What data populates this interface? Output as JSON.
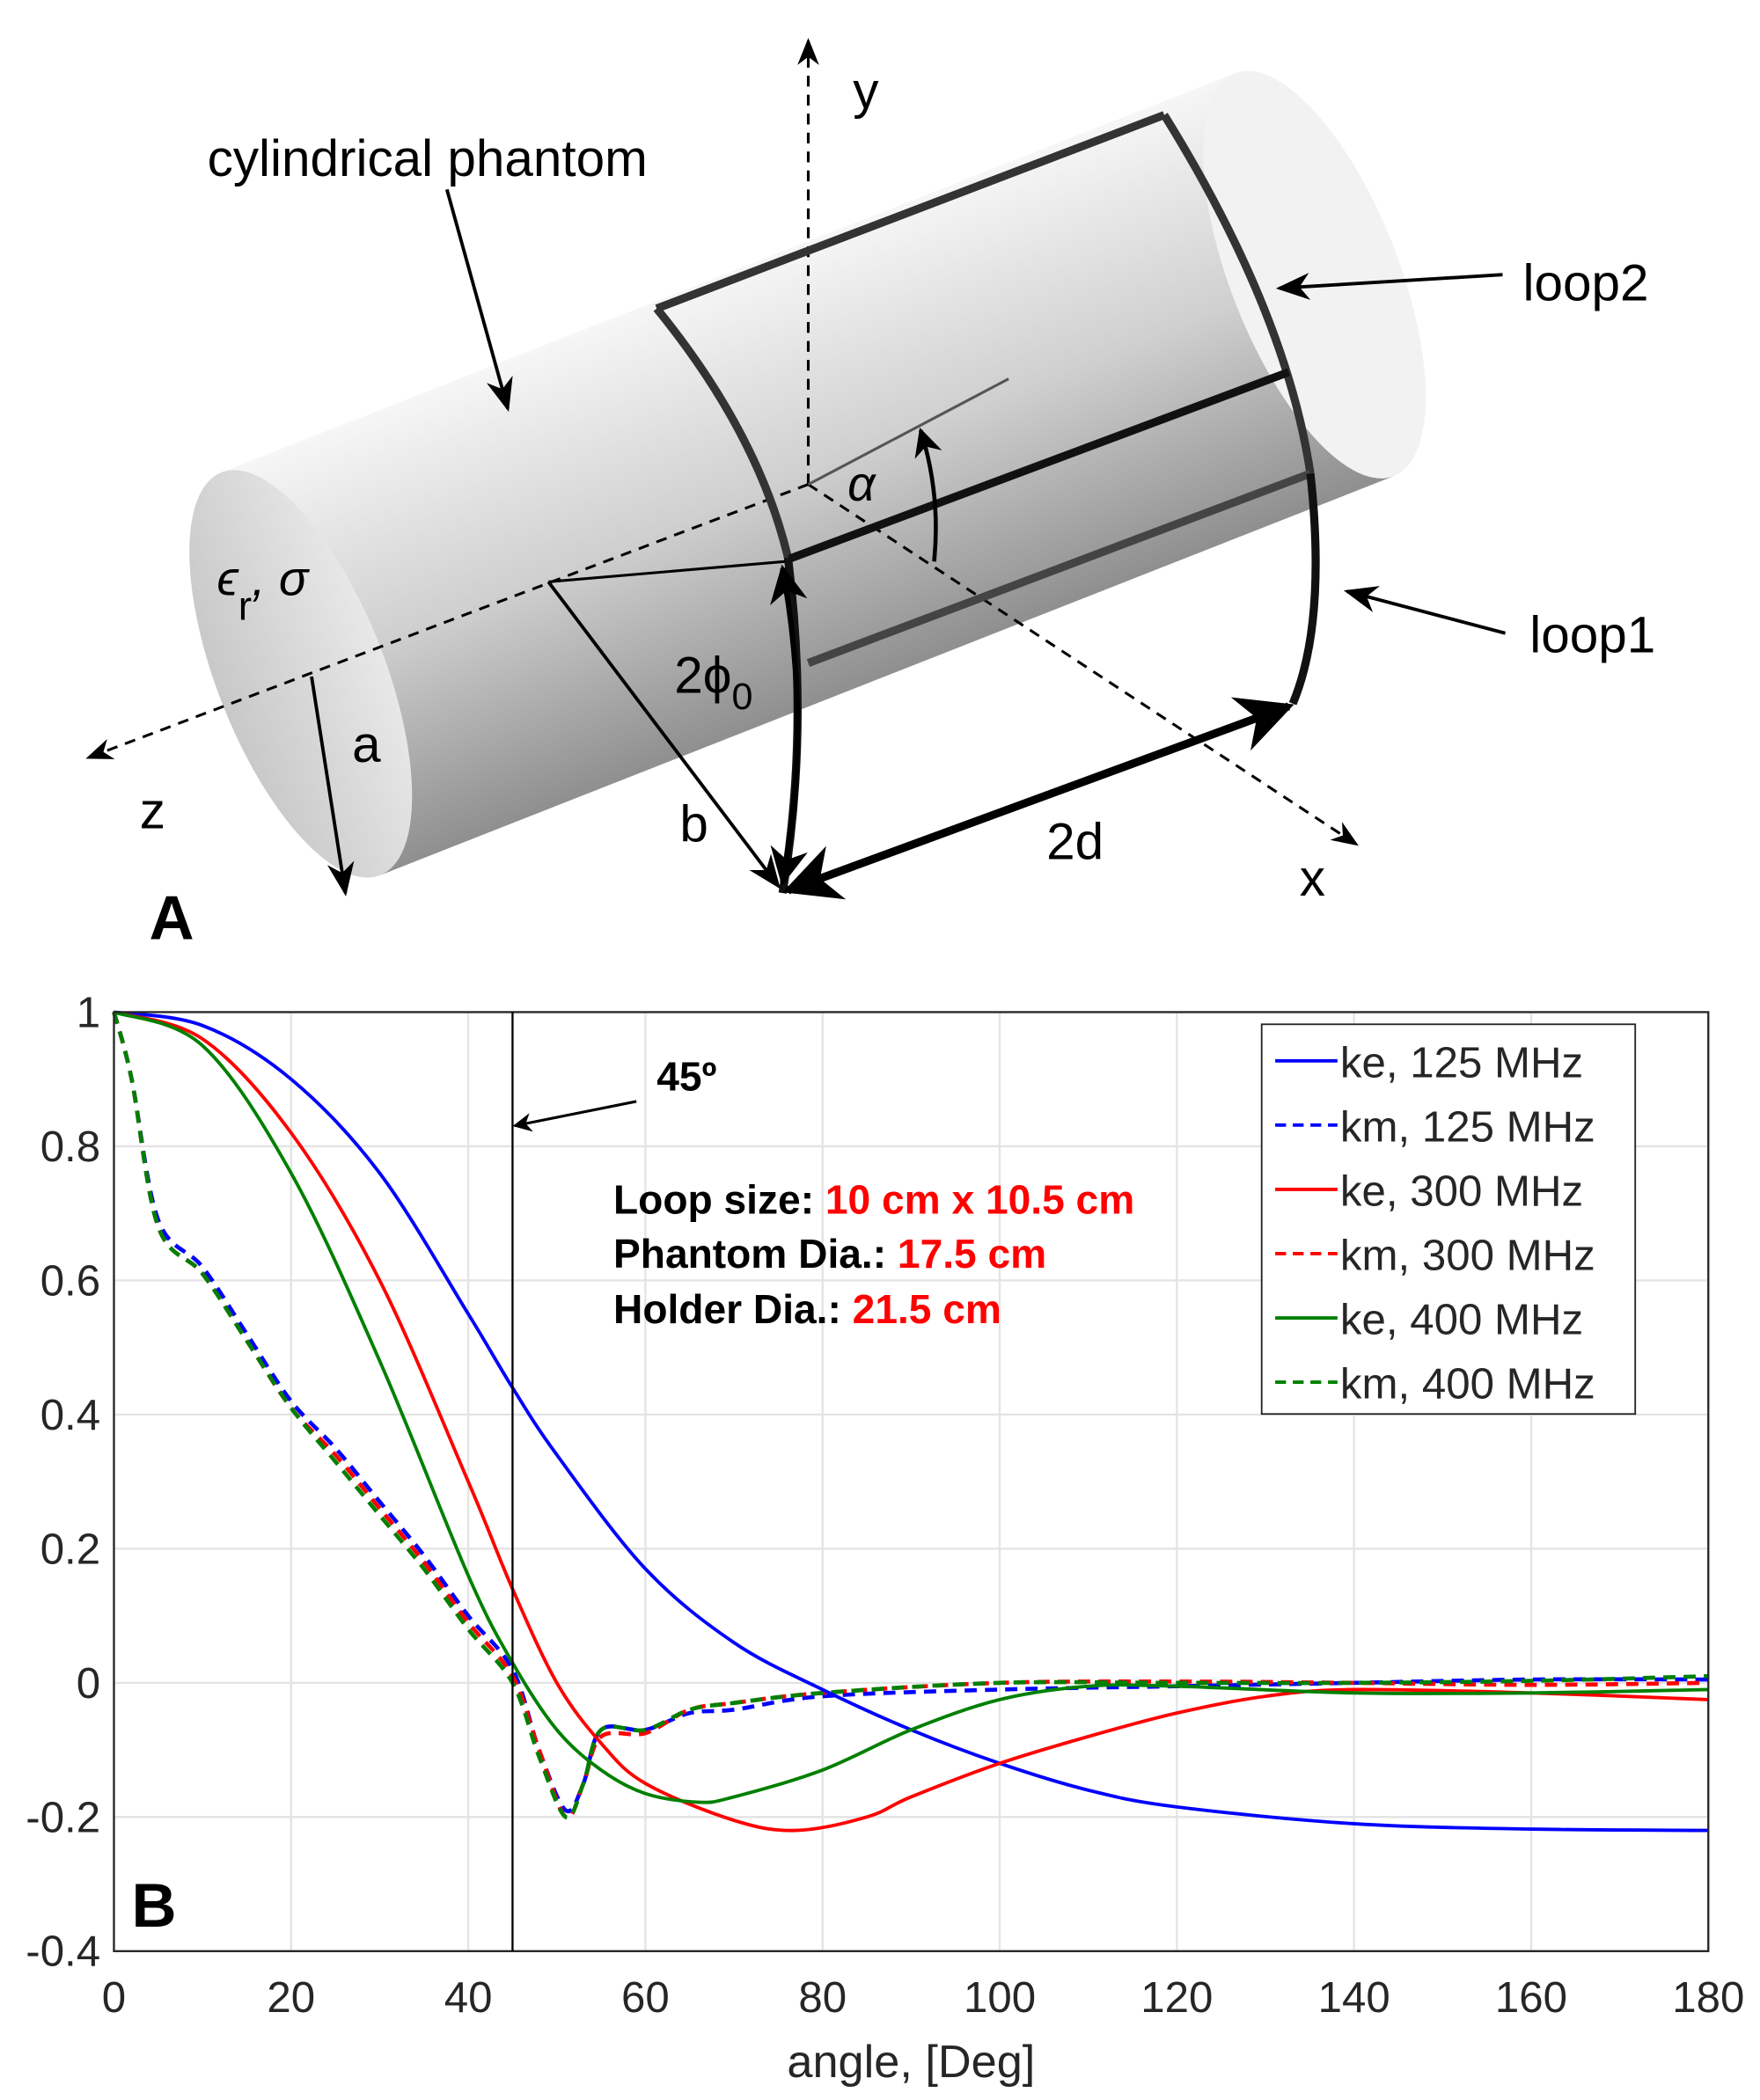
{
  "diagram": {
    "panel_label": "A",
    "labels": {
      "phantom": "cylindrical phantom",
      "loop2": "loop2",
      "loop1": "loop1",
      "y": "y",
      "z": "z",
      "x": "x",
      "a": "a",
      "b": "b",
      "two_d": "2d",
      "alpha": "α",
      "two_phi": "2ϕ",
      "phi_sub": "0",
      "eps": "ϵ",
      "eps_sub": "r",
      "sigma": ", σ"
    }
  },
  "chart_data": {
    "type": "line",
    "panel_label": "B",
    "xlabel": "angle, [Deg]",
    "ylabel": "",
    "xlim": [
      0,
      180
    ],
    "ylim": [
      -0.4,
      1
    ],
    "xticks": [
      0,
      20,
      40,
      60,
      80,
      100,
      120,
      140,
      160,
      180
    ],
    "yticks": [
      -0.4,
      -0.2,
      0,
      0.2,
      0.4,
      0.6,
      0.8,
      1
    ],
    "ytick_labels": [
      "-0.4",
      "-0.2",
      "0",
      "0.2",
      "0.4",
      "0.6",
      "0.8",
      "1"
    ],
    "grid": true,
    "legend_position": "top-right",
    "vline": {
      "x": 45,
      "label": "45º"
    },
    "annotation": [
      {
        "key": "Loop size: ",
        "value": "10 cm x 10.5 cm"
      },
      {
        "key": "Phantom Dia.: ",
        "value": "17.5 cm"
      },
      {
        "key": "Holder Dia.: ",
        "value": "21.5 cm"
      }
    ],
    "annotation_value_color": "#ff0000",
    "series": [
      {
        "name": "ke, 125 MHz",
        "color": "#0000ff",
        "dash": false,
        "x": [
          0,
          10,
          20,
          30,
          40,
          45,
          50,
          60,
          70,
          80,
          90,
          100,
          110,
          120,
          140,
          160,
          180
        ],
        "y": [
          1,
          0.98,
          0.9,
          0.76,
          0.55,
          0.44,
          0.34,
          0.17,
          0.06,
          -0.01,
          -0.07,
          -0.12,
          -0.16,
          -0.185,
          -0.21,
          -0.218,
          -0.22
        ]
      },
      {
        "name": "km, 125 MHz",
        "color": "#0000ff",
        "dash": true,
        "x": [
          0,
          2,
          5,
          10,
          15,
          20,
          25,
          30,
          35,
          40,
          45,
          48,
          51,
          53,
          55,
          60,
          65,
          70,
          80,
          100,
          120,
          140,
          160,
          180
        ],
        "y": [
          1,
          0.9,
          0.69,
          0.62,
          0.52,
          0.42,
          0.35,
          0.27,
          0.19,
          0.1,
          0.02,
          -0.1,
          -0.19,
          -0.15,
          -0.07,
          -0.07,
          -0.045,
          -0.04,
          -0.02,
          -0.01,
          -0.005,
          0,
          0.005,
          0.005
        ]
      },
      {
        "name": "ke, 300 MHz",
        "color": "#ff0000",
        "dash": false,
        "x": [
          0,
          10,
          20,
          30,
          40,
          45,
          50,
          55,
          60,
          70,
          77,
          85,
          90,
          100,
          110,
          120,
          130,
          140,
          160,
          180
        ],
        "y": [
          1,
          0.96,
          0.82,
          0.6,
          0.3,
          0.14,
          0.0,
          -0.09,
          -0.15,
          -0.205,
          -0.22,
          -0.2,
          -0.17,
          -0.12,
          -0.08,
          -0.045,
          -0.02,
          -0.01,
          -0.015,
          -0.025
        ]
      },
      {
        "name": "km, 300 MHz",
        "color": "#ff0000",
        "dash": true,
        "x": [
          0,
          2,
          5,
          10,
          15,
          20,
          25,
          30,
          35,
          40,
          45,
          48,
          51,
          53,
          55,
          60,
          65,
          70,
          80,
          100,
          120,
          140,
          160,
          180
        ],
        "y": [
          1,
          0.9,
          0.68,
          0.61,
          0.51,
          0.41,
          0.34,
          0.26,
          0.18,
          0.09,
          0.01,
          -0.1,
          -0.2,
          -0.15,
          -0.08,
          -0.075,
          -0.04,
          -0.03,
          -0.015,
          0,
          0.002,
          0,
          -0.003,
          0
        ]
      },
      {
        "name": "ke, 400 MHz",
        "color": "#008000",
        "dash": false,
        "x": [
          0,
          10,
          20,
          30,
          40,
          45,
          50,
          55,
          60,
          66,
          70,
          80,
          90,
          100,
          110,
          120,
          140,
          160,
          180
        ],
        "y": [
          1,
          0.95,
          0.76,
          0.48,
          0.16,
          0.03,
          -0.07,
          -0.13,
          -0.165,
          -0.178,
          -0.17,
          -0.13,
          -0.07,
          -0.025,
          -0.005,
          -0.005,
          -0.015,
          -0.015,
          -0.01
        ]
      },
      {
        "name": "km, 400 MHz",
        "color": "#008000",
        "dash": true,
        "x": [
          0,
          2,
          5,
          10,
          15,
          20,
          25,
          30,
          35,
          40,
          45,
          48,
          51,
          53,
          55,
          60,
          65,
          70,
          80,
          100,
          120,
          140,
          160,
          180
        ],
        "y": [
          1,
          0.9,
          0.68,
          0.61,
          0.51,
          0.41,
          0.33,
          0.25,
          0.17,
          0.08,
          0.0,
          -0.11,
          -0.2,
          -0.15,
          -0.07,
          -0.07,
          -0.04,
          -0.03,
          -0.015,
          0,
          0,
          0,
          0.003,
          0.01
        ]
      }
    ]
  }
}
